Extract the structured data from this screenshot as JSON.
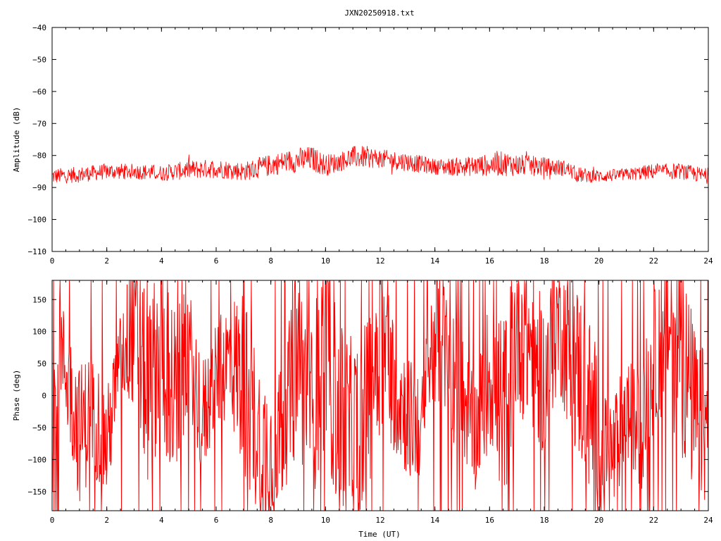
{
  "title": "JXN20250918.txt",
  "colors": {
    "series": "#ff0000",
    "axis": "#000000",
    "background": "#ffffff"
  },
  "chart_data": [
    {
      "type": "line",
      "ylabel": "Amplitude (dB)",
      "xlabel": "",
      "xlim": [
        0,
        24
      ],
      "ylim": [
        -110,
        -40
      ],
      "xticks": [
        "0",
        "2",
        "4",
        "6",
        "8",
        "10",
        "12",
        "14",
        "16",
        "18",
        "20",
        "22",
        "24"
      ],
      "yticks": [
        "-40",
        "-50",
        "-60",
        "-70",
        "-80",
        "-90",
        "-100",
        "-110"
      ],
      "grid": false,
      "series": [
        {
          "x": [
            0,
            1,
            2,
            3,
            4,
            5,
            6,
            7,
            8,
            8.5,
            9,
            9.5,
            10,
            10.5,
            11,
            11.5,
            12,
            13,
            14,
            15,
            16,
            16.5,
            17,
            18,
            18.8,
            19.2,
            20,
            21,
            22,
            23,
            24
          ],
          "mean": [
            -86.5,
            -86,
            -85,
            -85,
            -85.5,
            -84.5,
            -84,
            -85,
            -83,
            -82,
            -81.5,
            -81,
            -83,
            -82,
            -80.5,
            -80.5,
            -81,
            -82,
            -83.5,
            -83.5,
            -83,
            -82.5,
            -83,
            -83.5,
            -84,
            -86,
            -86.5,
            -86,
            -85,
            -85,
            -86.5
          ],
          "spread": [
            2.5,
            2.5,
            2.5,
            2.5,
            2.5,
            3,
            3,
            3,
            3.5,
            3.5,
            4,
            4,
            3.5,
            3,
            3.5,
            3.5,
            3,
            3,
            2.5,
            3,
            3.5,
            4,
            3.5,
            3,
            2.5,
            2.5,
            2,
            2,
            2.5,
            2.5,
            2.5
          ]
        }
      ]
    },
    {
      "type": "line",
      "ylabel": "Phase (deg)",
      "xlabel": "Time (UT)",
      "xlim": [
        0,
        24
      ],
      "ylim": [
        -180,
        180
      ],
      "xticks": [
        "0",
        "2",
        "4",
        "6",
        "8",
        "10",
        "12",
        "14",
        "16",
        "18",
        "20",
        "22",
        "24"
      ],
      "yticks": [
        "150",
        "100",
        "50",
        "0",
        "-50",
        "-100",
        "-150"
      ],
      "grid": false,
      "series": [
        {
          "x": [
            0,
            0.3,
            0.6,
            1,
            1.5,
            2,
            2.5,
            3,
            3.5,
            4,
            4.5,
            5,
            5.5,
            6,
            6.5,
            7,
            7.5,
            8,
            8.5,
            9,
            9.5,
            10,
            10.5,
            11,
            11.5,
            12,
            12.5,
            13,
            13.5,
            14,
            14.5,
            15,
            15.5,
            16,
            16.5,
            17,
            17.5,
            18,
            18.5,
            19,
            19.5,
            20,
            20.5,
            21,
            21.5,
            22,
            22.5,
            23,
            23.5,
            24
          ],
          "mean": [
            -40,
            80,
            20,
            -60,
            -20,
            -80,
            60,
            110,
            0,
            90,
            -20,
            80,
            -40,
            30,
            60,
            20,
            -60,
            -90,
            -40,
            60,
            -30,
            90,
            -50,
            -60,
            -20,
            100,
            20,
            -30,
            -60,
            110,
            50,
            0,
            -60,
            40,
            -30,
            110,
            80,
            20,
            120,
            60,
            10,
            -80,
            -100,
            -20,
            -60,
            50,
            120,
            70,
            -30,
            -60
          ],
          "spread": [
            120,
            80,
            90,
            110,
            100,
            90,
            70,
            130,
            140,
            150,
            160,
            90,
            100,
            80,
            100,
            150,
            130,
            120,
            110,
            150,
            140,
            170,
            160,
            150,
            140,
            160,
            110,
            100,
            80,
            120,
            110,
            100,
            90,
            120,
            150,
            140,
            130,
            120,
            110,
            130,
            150,
            140,
            100,
            80,
            100,
            110,
            150,
            160,
            140,
            120
          ]
        }
      ]
    }
  ]
}
